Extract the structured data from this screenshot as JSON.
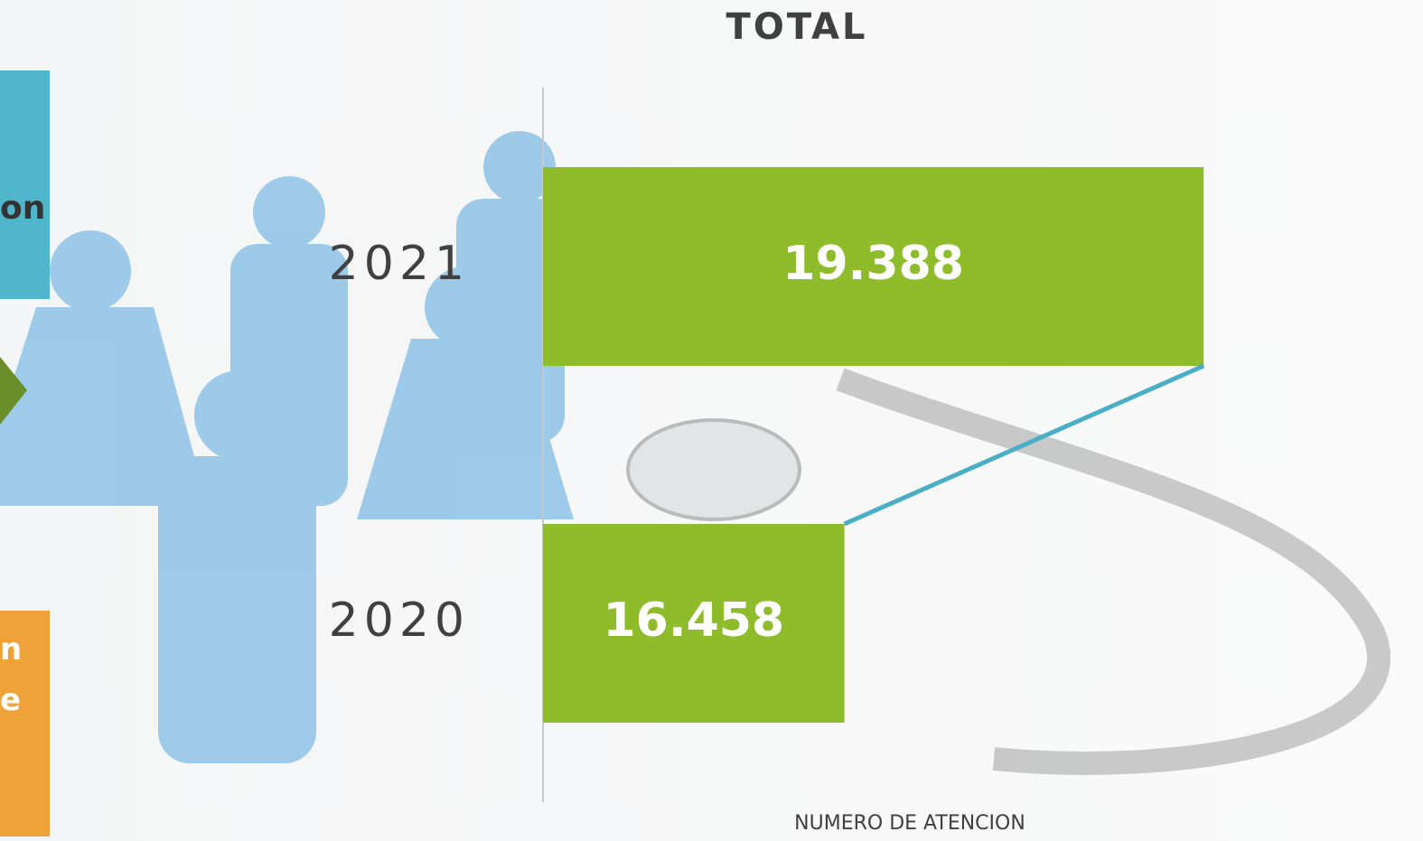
{
  "chart_data": {
    "type": "hbar",
    "title": "TOTAL",
    "x_label": "NUMERO DE ATENCION",
    "categories": [
      "2021",
      "2020"
    ],
    "values": [
      19388,
      16458
    ],
    "value_labels": [
      "19.388",
      "16.458"
    ],
    "color": "#8fbc2b",
    "connector_color": "#4aaec4",
    "xlim": [
      14000,
      21000
    ]
  },
  "side_panels": [
    {
      "text": "on",
      "color": "#4fb6cc"
    },
    {
      "text": "n\ne",
      "color": "#f0a23a"
    }
  ]
}
